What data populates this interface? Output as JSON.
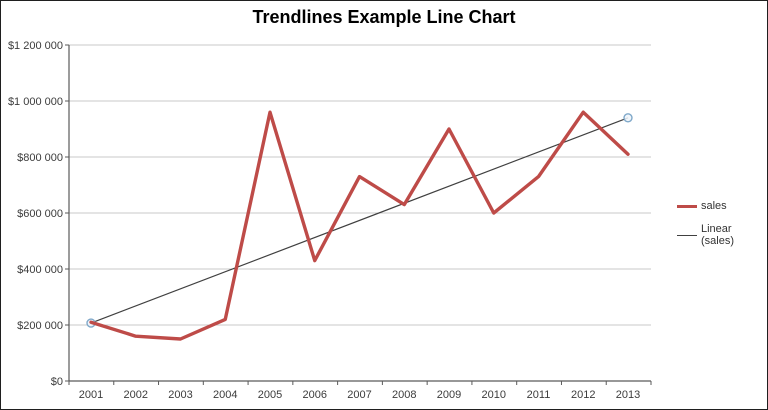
{
  "title": "Trendlines Example Line Chart",
  "legend": {
    "items": [
      {
        "label": "sales",
        "color": "#BE4B48"
      },
      {
        "label": "Linear (sales)",
        "color": "#404040"
      }
    ]
  },
  "chart_data": {
    "type": "line",
    "title": "Trendlines Example Line Chart",
    "categories": [
      "2001",
      "2002",
      "2003",
      "2004",
      "2005",
      "2006",
      "2007",
      "2008",
      "2009",
      "2010",
      "2011",
      "2012",
      "2013"
    ],
    "series": [
      {
        "name": "sales",
        "color": "#BE4B48",
        "values": [
          210000,
          160000,
          150000,
          220000,
          960000,
          430000,
          730000,
          630000,
          900000,
          600000,
          730000,
          960000,
          810000
        ]
      },
      {
        "name": "Linear (sales)",
        "color": "#404040",
        "kind": "linear-trendline",
        "endpoints": {
          "start_year": "2001",
          "start_value": 207000,
          "end_year": "2013",
          "end_value": 940000
        },
        "endpoint_marker": "open-circle"
      }
    ],
    "ylim": [
      0,
      1200000
    ],
    "ytick_step": 200000,
    "ytick_labels": [
      "$0",
      "$200 000",
      "$400 000",
      "$600 000",
      "$800 000",
      "$1 000 000",
      "$1 200 000"
    ],
    "xlabel": "",
    "ylabel": "",
    "grid": true,
    "legend_position": "right",
    "colors": {
      "gridline": "#c9c9c9",
      "axis": "#5a5a5a",
      "endpoint_marker_stroke": "#7fa8c9",
      "endpoint_marker_fill": "#eef4fa"
    }
  }
}
